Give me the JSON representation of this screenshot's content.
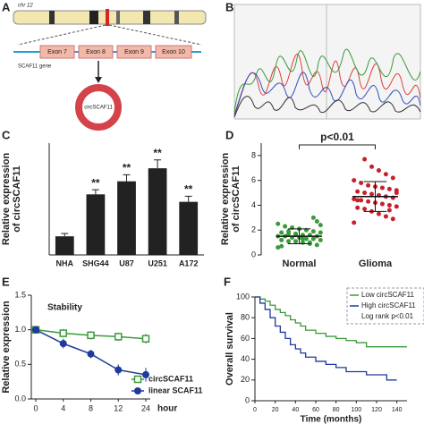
{
  "panel_labels": [
    "A",
    "B",
    "C",
    "D",
    "E",
    "F"
  ],
  "diagram": {
    "chromosome": "chr 12",
    "exons": [
      "Exon 7",
      "Exon 8",
      "Exon 9",
      "Exon 10"
    ],
    "gene": "SCAF11 gene",
    "product": "circSCAF11"
  },
  "chart_data": [
    {
      "type": "bar",
      "ylabel": [
        "Relative expression",
        "of circSCAF11"
      ],
      "categories": [
        "NHA",
        "SHG44",
        "U87",
        "U251",
        "A172"
      ],
      "values": [
        1.0,
        3.25,
        3.95,
        4.65,
        2.85
      ],
      "errors": [
        0.15,
        0.25,
        0.35,
        0.45,
        0.3
      ],
      "value_labels": [
        null,
        "**",
        "**",
        "**",
        "**"
      ],
      "color": "#222222",
      "ylim": [
        0,
        6
      ]
    },
    {
      "type": "strip",
      "ylabel": [
        "Relative expression",
        "of circSCAF11"
      ],
      "annotation": "p<0.01",
      "ylim": [
        0,
        9
      ],
      "yticks": [
        0,
        2,
        4,
        6,
        8
      ],
      "series": [
        {
          "name": "Normal",
          "color": "#3a9a3a",
          "mean": 1.5,
          "sd": 0.6,
          "values": [
            0.6,
            0.8,
            0.9,
            1.0,
            1.1,
            1.1,
            1.2,
            1.2,
            1.3,
            1.3,
            1.4,
            1.4,
            1.5,
            1.5,
            1.5,
            1.6,
            1.6,
            1.7,
            1.7,
            1.8,
            1.8,
            1.9,
            2.0,
            2.1,
            2.2,
            2.3,
            2.5,
            2.7,
            1.0,
            1.3,
            1.6,
            1.9,
            0.7,
            2.4,
            3.0
          ]
        },
        {
          "name": "Glioma",
          "color": "#c8202a",
          "mean": 4.7,
          "sd": 1.2,
          "values": [
            2.6,
            2.9,
            3.1,
            3.3,
            3.5,
            3.7,
            3.8,
            3.9,
            4.0,
            4.1,
            4.2,
            4.3,
            4.4,
            4.5,
            4.6,
            4.7,
            4.8,
            4.9,
            5.0,
            5.1,
            5.2,
            5.3,
            5.4,
            5.5,
            5.6,
            5.8,
            6.0,
            6.2,
            6.5,
            6.8,
            7.1,
            7.7,
            4.4,
            5.0,
            3.6
          ]
        }
      ]
    },
    {
      "type": "line",
      "ylabel": "Relative expression",
      "annotation": "Stability",
      "categories": [
        "0",
        "4",
        "8",
        "12",
        "24"
      ],
      "xlabel": "hour",
      "ylim": [
        0,
        1.5
      ],
      "yticks": [
        {
          "value": 0,
          "label": "0.0"
        },
        {
          "value": 0.5,
          "label": "0.5"
        },
        {
          "value": 1,
          "label": "1.0"
        },
        {
          "value": 1.5,
          "label": "1.5"
        }
      ],
      "series": [
        {
          "name": "circSCAF11",
          "color": "#3a9a3a",
          "marker": "open-square",
          "values": [
            1.0,
            0.95,
            0.92,
            0.9,
            0.87
          ],
          "errors": [
            0.05,
            0.06,
            0.06,
            0.06,
            0.07
          ]
        },
        {
          "name": "linear SCAF11",
          "color": "#1f3a9a",
          "marker": "filled-circle",
          "values": [
            1.0,
            0.8,
            0.65,
            0.42,
            0.35
          ],
          "errors": [
            0.05,
            0.07,
            0.06,
            0.08,
            0.1
          ]
        }
      ]
    },
    {
      "type": "survival",
      "ylabel": "Overall survival",
      "xlabel": "Time (months)",
      "annotation": "Log rank p<0.01",
      "xlim": [
        0,
        150
      ],
      "xticks": [
        0,
        20,
        40,
        60,
        80,
        100,
        120,
        140
      ],
      "ylim": [
        0,
        100
      ],
      "yticks": [
        0,
        20,
        40,
        60,
        80,
        100
      ],
      "series": [
        {
          "name": "Low circSCAF11",
          "color": "#3a9a3a",
          "x": [
            0,
            5,
            10,
            15,
            20,
            25,
            30,
            35,
            40,
            45,
            50,
            60,
            70,
            80,
            90,
            100,
            110,
            120,
            150
          ],
          "values": [
            100,
            98,
            96,
            92,
            88,
            85,
            82,
            78,
            75,
            72,
            68,
            65,
            62,
            60,
            58,
            56,
            52,
            52,
            52
          ]
        },
        {
          "name": "High circSCAF11",
          "color": "#1f3a9a",
          "x": [
            0,
            5,
            10,
            15,
            20,
            25,
            30,
            35,
            40,
            45,
            50,
            60,
            70,
            80,
            90,
            110,
            130,
            140
          ],
          "values": [
            100,
            94,
            88,
            80,
            72,
            66,
            60,
            54,
            50,
            46,
            42,
            38,
            35,
            32,
            28,
            25,
            20,
            20
          ]
        }
      ]
    }
  ]
}
